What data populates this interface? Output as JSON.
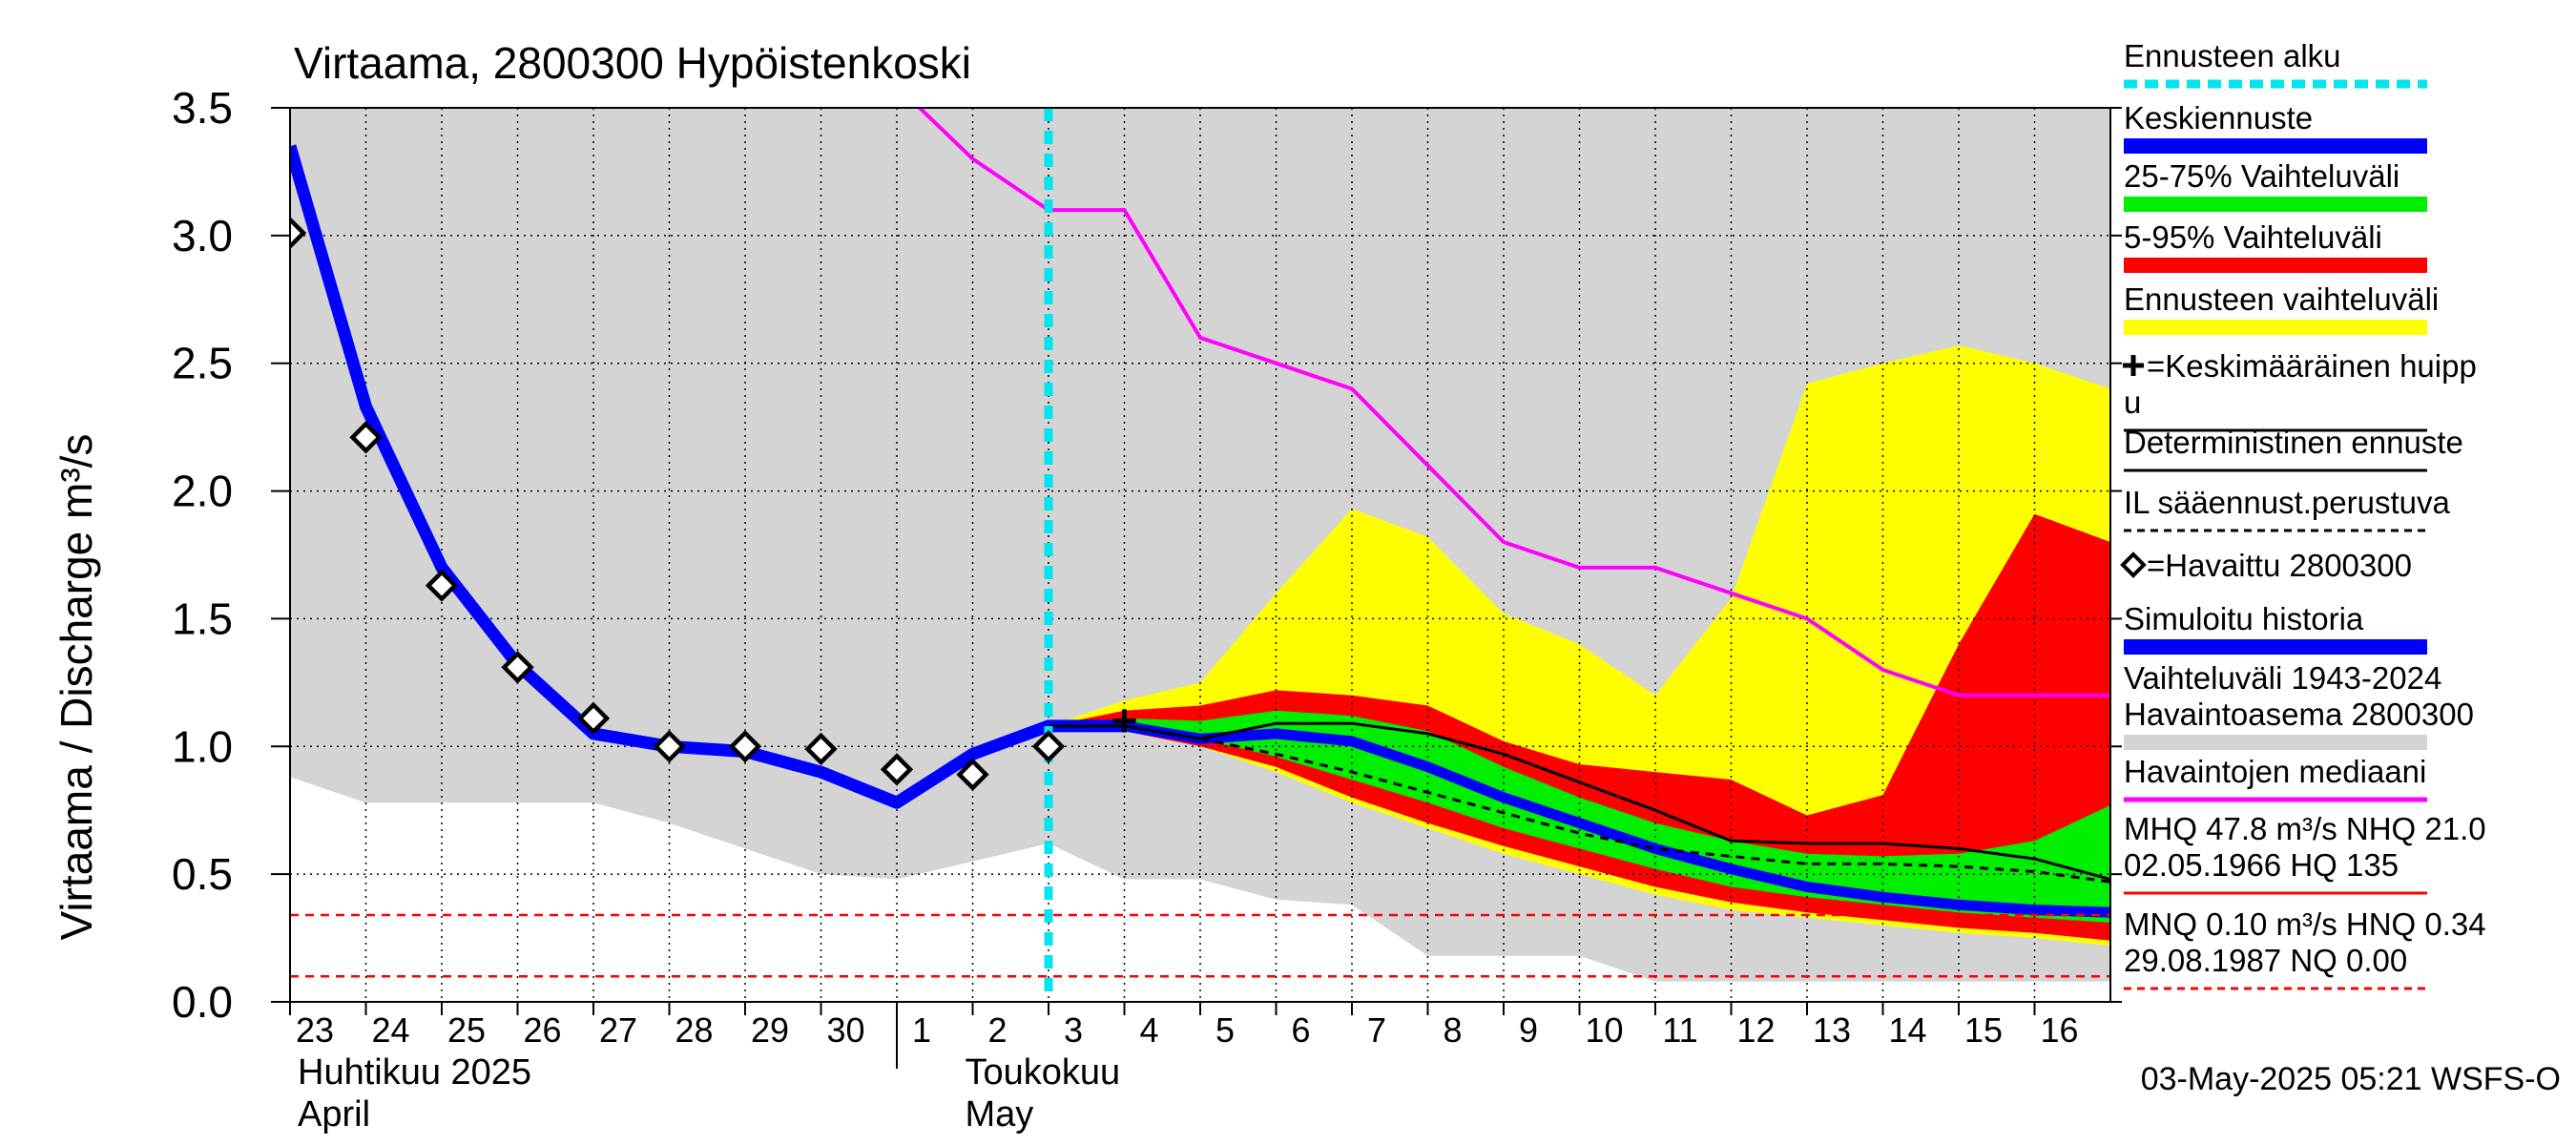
{
  "chart_data": {
    "type": "line",
    "title": "Virtaama, 2800300 Hypöistenkoski",
    "ylabel": "Virtaama / Discharge   m³/s",
    "ylim": [
      0,
      3.5
    ],
    "yticks": [
      0.0,
      0.5,
      1.0,
      1.5,
      2.0,
      2.5,
      3.0,
      3.5
    ],
    "ytick_labels": [
      "0.0",
      "0.5",
      "1.0",
      "1.5",
      "2.0",
      "2.5",
      "3.0",
      "3.5"
    ],
    "x_unit": "day index (0 = 23 April 2025)",
    "xlim": [
      0,
      24
    ],
    "x_tick_labels": [
      "23",
      "24",
      "25",
      "26",
      "27",
      "28",
      "29",
      "30",
      "1",
      "2",
      "3",
      "4",
      "5",
      "6",
      "7",
      "8",
      "9",
      "10",
      "11",
      "12",
      "13",
      "14",
      "15",
      "16"
    ],
    "month_labels": [
      {
        "line1": "Huhtikuu  2025",
        "line2": "April"
      },
      {
        "line1": "Toukokuu",
        "line2": "May"
      }
    ],
    "forecast_start": 10.0,
    "legend": [
      {
        "label": "Ennusteen alku",
        "color": "#00e5ee",
        "style": "dashed-thick"
      },
      {
        "label": "Keskiennuste",
        "color": "#0000ff",
        "style": "thick"
      },
      {
        "label": "25-75% Vaihteluväli",
        "color": "#00ee00",
        "style": "thick"
      },
      {
        "label": "5-95% Vaihteluväli",
        "color": "#ff0000",
        "style": "thick"
      },
      {
        "label": "Ennusteen vaihteluväli",
        "color": "#ffff00",
        "style": "thick"
      },
      {
        "label": "=Keskimääräinen huipp",
        "label2": "u",
        "color": "#000000",
        "style": "plus"
      },
      {
        "label": "Deterministinen ennuste",
        "color": "#000000",
        "style": "thin"
      },
      {
        "label": "IL sääennust.perustuva",
        "color": "#000000",
        "style": "dashed-thin"
      },
      {
        "label": "=Havaittu 2800300",
        "color": "#000000",
        "style": "diamond"
      },
      {
        "label": "Simuloitu historia",
        "color": "#0000ff",
        "style": "thick"
      },
      {
        "label": "Vaihteluväli 1943-2024",
        "label2": " Havaintoasema 2800300",
        "color": "#d4d4d4",
        "style": "thick"
      },
      {
        "label": "Havaintojen mediaani",
        "color": "#ff00ff",
        "style": "medium"
      },
      {
        "label": "MHQ 47.8 m³/s NHQ 21.0",
        "label2": "02.05.1966 HQ  135",
        "color": "#ff0000",
        "style": "thin"
      },
      {
        "label": "MNQ 0.10 m³/s HNQ 0.34",
        "label2": "29.08.1987 NQ 0.00",
        "color": "#ff0000",
        "style": "dashed-thin"
      }
    ],
    "footer": "03-May-2025 05:21 WSFS-O",
    "series": [
      {
        "name": "Vaihteluväli 1943-2024",
        "kind": "band",
        "color": "#d4d4d4",
        "x": [
          0,
          1,
          4,
          5,
          6,
          7,
          8,
          9,
          10,
          11,
          12,
          13,
          14,
          15,
          16,
          17,
          18,
          19,
          20,
          21,
          22,
          23,
          24
        ],
        "low": [
          0.88,
          0.78,
          0.78,
          0.7,
          0.6,
          0.5,
          0.48,
          0.55,
          0.62,
          0.48,
          0.48,
          0.4,
          0.38,
          0.18,
          0.18,
          0.18,
          0.08,
          0.08,
          0.08,
          0.08,
          0.08,
          0.08,
          0.08
        ],
        "high": [
          3.5,
          3.5,
          3.5,
          3.5,
          3.5,
          3.5,
          3.5,
          3.5,
          3.5,
          3.5,
          3.5,
          3.5,
          3.5,
          3.5,
          3.5,
          3.5,
          3.5,
          3.5,
          3.5,
          3.5,
          3.5,
          3.5,
          3.5
        ]
      },
      {
        "name": "Ennusteen vaihteluväli",
        "kind": "band",
        "color": "#ffff00",
        "x": [
          10,
          11,
          12,
          13,
          14,
          15,
          16,
          17,
          18,
          19,
          20,
          21,
          22,
          23,
          24
        ],
        "low": [
          1.08,
          1.07,
          1.0,
          0.9,
          0.78,
          0.68,
          0.58,
          0.5,
          0.42,
          0.36,
          0.33,
          0.3,
          0.27,
          0.25,
          0.22
        ],
        "high": [
          1.08,
          1.18,
          1.25,
          1.6,
          1.93,
          1.82,
          1.52,
          1.4,
          1.2,
          1.58,
          2.42,
          2.5,
          2.57,
          2.5,
          2.4
        ]
      },
      {
        "name": "5-95% Vaihteluväli",
        "kind": "band",
        "color": "#ff0000",
        "x": [
          10,
          11,
          12,
          13,
          14,
          15,
          16,
          17,
          18,
          19,
          20,
          21,
          22,
          23,
          24
        ],
        "low": [
          1.08,
          1.06,
          1.0,
          0.92,
          0.8,
          0.7,
          0.61,
          0.53,
          0.45,
          0.39,
          0.35,
          0.32,
          0.29,
          0.27,
          0.24
        ],
        "high": [
          1.08,
          1.14,
          1.16,
          1.22,
          1.2,
          1.16,
          1.02,
          0.93,
          0.9,
          0.87,
          0.73,
          0.81,
          1.4,
          1.91,
          1.8
        ]
      },
      {
        "name": "25-75% Vaihteluväli",
        "kind": "band",
        "color": "#00ee00",
        "x": [
          10,
          11,
          12,
          13,
          14,
          15,
          16,
          17,
          18,
          19,
          20,
          21,
          22,
          23,
          24
        ],
        "low": [
          1.08,
          1.08,
          1.03,
          0.96,
          0.87,
          0.78,
          0.68,
          0.6,
          0.52,
          0.45,
          0.41,
          0.38,
          0.35,
          0.33,
          0.31
        ],
        "high": [
          1.08,
          1.11,
          1.1,
          1.14,
          1.12,
          1.06,
          0.92,
          0.8,
          0.7,
          0.63,
          0.58,
          0.57,
          0.58,
          0.63,
          0.77
        ]
      },
      {
        "name": "Havaintojen mediaani",
        "kind": "line",
        "color": "#ff00ff",
        "x": [
          8.3,
          9,
          10,
          11,
          12,
          13,
          14,
          15,
          16,
          17,
          18,
          19,
          20,
          21,
          22,
          23,
          24
        ],
        "y": [
          3.5,
          3.3,
          3.1,
          3.1,
          2.6,
          2.5,
          2.4,
          2.1,
          1.8,
          1.7,
          1.7,
          1.6,
          1.5,
          1.3,
          1.2,
          1.2,
          1.2
        ]
      },
      {
        "name": "Simuloitu historia",
        "kind": "line",
        "color": "#0000ff",
        "x": [
          0,
          1,
          2,
          3,
          4,
          5,
          6,
          7,
          8,
          9,
          10,
          11
        ],
        "y": [
          3.35,
          2.33,
          1.7,
          1.32,
          1.05,
          1.0,
          0.98,
          0.9,
          0.78,
          0.97,
          1.08,
          1.08
        ]
      },
      {
        "name": "Keskiennuste",
        "kind": "line",
        "color": "#0000ff",
        "x": [
          10,
          11,
          12,
          13,
          14,
          15,
          16,
          17,
          18,
          19,
          20,
          21,
          22,
          23,
          24
        ],
        "y": [
          1.08,
          1.08,
          1.03,
          1.05,
          1.02,
          0.92,
          0.8,
          0.7,
          0.6,
          0.52,
          0.45,
          0.41,
          0.38,
          0.36,
          0.35
        ]
      },
      {
        "name": "Deterministinen ennuste",
        "kind": "line",
        "color": "#000000",
        "x": [
          10,
          11,
          12,
          13,
          14,
          15,
          16,
          17,
          18,
          19,
          20,
          21,
          22,
          23,
          24
        ],
        "y": [
          1.08,
          1.08,
          1.03,
          1.09,
          1.09,
          1.05,
          0.97,
          0.86,
          0.75,
          0.63,
          0.62,
          0.62,
          0.6,
          0.56,
          0.48
        ]
      },
      {
        "name": "IL sääennust.perustuva",
        "kind": "line",
        "color": "#000000",
        "x": [
          10,
          11,
          12,
          13,
          14,
          15,
          16,
          17,
          18,
          19,
          20,
          21,
          22,
          23,
          24
        ],
        "y": [
          1.08,
          1.08,
          1.03,
          0.97,
          0.9,
          0.82,
          0.74,
          0.66,
          0.6,
          0.57,
          0.54,
          0.54,
          0.53,
          0.51,
          0.47
        ]
      },
      {
        "name": "=Havaittu 2800300",
        "kind": "markers",
        "color": "#000000",
        "x": [
          0,
          1,
          2,
          3,
          4,
          5,
          6,
          7,
          8,
          9,
          10
        ],
        "y": [
          3.01,
          2.21,
          1.63,
          1.31,
          1.11,
          1.0,
          1.0,
          0.99,
          0.91,
          0.89,
          1.0
        ]
      },
      {
        "name": "=Keskimääräinen huippu",
        "kind": "plus",
        "color": "#000000",
        "x": [
          11
        ],
        "y": [
          1.1
        ]
      },
      {
        "name": "HNQ",
        "kind": "hline",
        "color": "#ff0000",
        "y": 0.34
      },
      {
        "name": "MNQ",
        "kind": "hline",
        "color": "#ff0000",
        "y": 0.1
      }
    ]
  }
}
